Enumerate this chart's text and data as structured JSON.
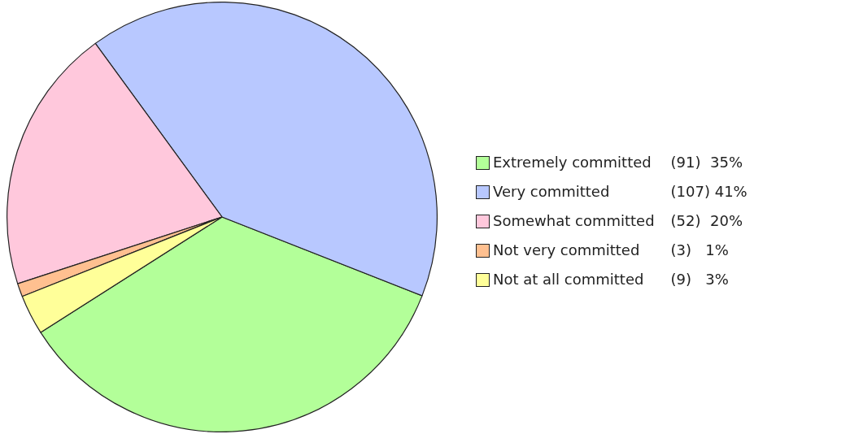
{
  "chart_data": {
    "type": "pie",
    "categories": [
      "Extremely committed",
      "Very committed",
      "Somewhat committed",
      "Not very committed",
      "Not at all committed"
    ],
    "values": [
      35,
      41,
      20,
      1,
      3
    ],
    "value_labels": [
      "(91)  35%",
      "(107) 41%",
      "(52)  20%",
      "(3)   1%",
      "(9)   3%"
    ],
    "colors": [
      "#b3ff99",
      "#b8c8ff",
      "#ffc8dc",
      "#ffc090",
      "#ffff99"
    ],
    "legend": "right"
  }
}
